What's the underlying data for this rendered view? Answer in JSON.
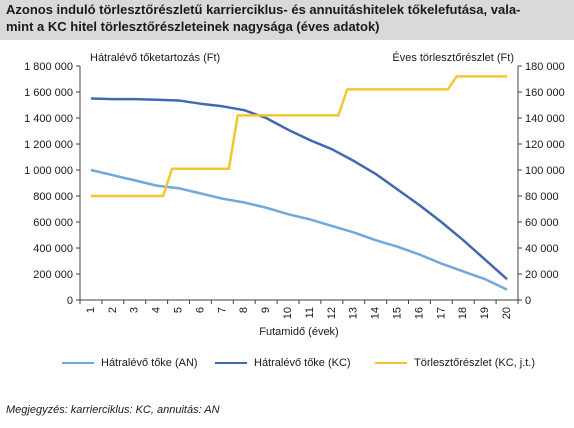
{
  "header": {
    "title_line1": "Azonos induló törlesztőrészletű karrierciklus- és annuitáshitelek tőkelefutása, vala-",
    "title_line2": "mint a KC hitel törlesztőrészleteinek nagysága (éves adatok)"
  },
  "chart_data": {
    "type": "line",
    "title": "Azonos induló törlesztőrészletű karrierciklus- és annuitáshitelek tőkelefutása, valamint a KC hitel törlesztőrészleteinek nagysága (éves adatok)",
    "xlabel": "Futamidő (évek)",
    "ylabel_left": "Hátralévő tőketartozás (Ft)",
    "ylabel_right": "Éves törlesztőrészlet (Ft)",
    "categories": [
      "1",
      "2",
      "3",
      "4",
      "5",
      "6",
      "7",
      "8",
      "9",
      "10",
      "11",
      "12",
      "13",
      "14",
      "15",
      "16",
      "17",
      "18",
      "19",
      "20"
    ],
    "ylim_left": [
      0,
      1800000
    ],
    "ylim_right": [
      0,
      180000
    ],
    "yticks_left": [
      "0",
      "200 000",
      "400 000",
      "600 000",
      "800 000",
      "1 000 000",
      "1 200 000",
      "1 400 000",
      "1 600 000",
      "1 800 000"
    ],
    "yticks_right": [
      "0",
      "20 000",
      "40 000",
      "60 000",
      "80 000",
      "100 000",
      "120 000",
      "140 000",
      "160 000",
      "180 000"
    ],
    "grid": false,
    "legend_position": "bottom",
    "series": [
      {
        "name": "Hátralévő tőke (AN)",
        "axis": "left",
        "color": "#6fa8dc",
        "values": [
          1000000,
          960000,
          920000,
          880000,
          860000,
          820000,
          780000,
          750000,
          710000,
          660000,
          620000,
          570000,
          520000,
          460000,
          410000,
          350000,
          280000,
          220000,
          160000,
          80000
        ]
      },
      {
        "name": "Hátralévő tőke (KC)",
        "axis": "left",
        "color": "#4468b0",
        "values": [
          1550000,
          1545000,
          1545000,
          1540000,
          1535000,
          1510000,
          1490000,
          1460000,
          1400000,
          1310000,
          1230000,
          1160000,
          1070000,
          970000,
          850000,
          730000,
          600000,
          460000,
          310000,
          160000
        ]
      },
      {
        "name": "Törlesztőrészlet (KC, j.t.)",
        "axis": "right",
        "color": "#f5c431",
        "step": true,
        "values": [
          80000,
          80000,
          80000,
          80000,
          101000,
          101000,
          101000,
          142000,
          142000,
          142000,
          142000,
          142000,
          162000,
          162000,
          162000,
          162000,
          162000,
          172000,
          172000,
          172000
        ]
      }
    ]
  },
  "footer": {
    "note": "Megjegyzés: karrierciklus: KC, annuitás: AN"
  }
}
